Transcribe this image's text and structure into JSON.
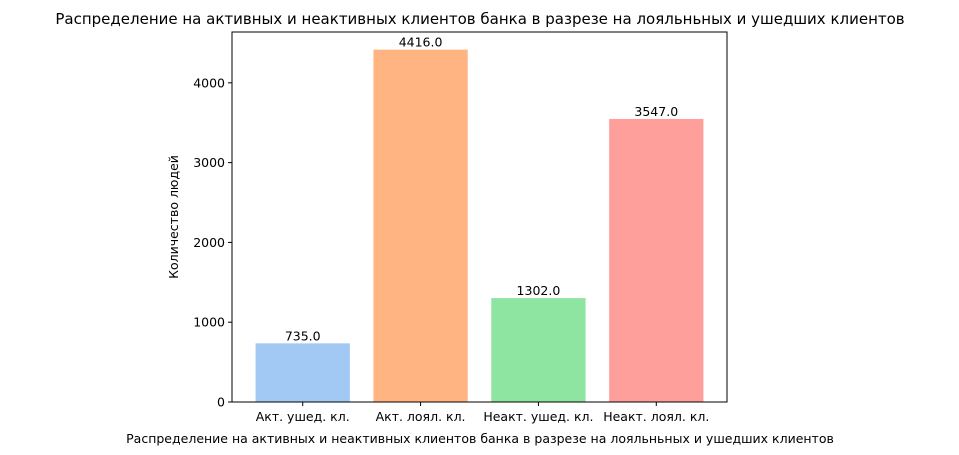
{
  "chart_data": {
    "type": "bar",
    "title": "Распределение на активных и неактивных клиентов банка в разрезе на лояльньных и ушедших клиентов",
    "xlabel": "Распределение на активных и неактивных клиентов банка в разрезе на лояльньных и ушедших клиентов",
    "ylabel": "Количество людей",
    "categories": [
      "Акт. ушед. кл.",
      "Акт. лоял. кл.",
      "Неакт. ушед. кл.",
      "Неакт. лоял. кл."
    ],
    "values": [
      735,
      4416,
      1302,
      3547
    ],
    "value_labels": [
      "735.0",
      "4416.0",
      "1302.0",
      "3547.0"
    ],
    "colors": [
      "#a1c9f4",
      "#ffb482",
      "#8de5a1",
      "#ff9f9b"
    ],
    "ylim": [
      0,
      4637
    ],
    "yticks": [
      0,
      1000,
      2000,
      3000,
      4000
    ],
    "ytick_labels": [
      "0",
      "1000",
      "2000",
      "3000",
      "4000"
    ],
    "grid": false,
    "legend": "none"
  }
}
